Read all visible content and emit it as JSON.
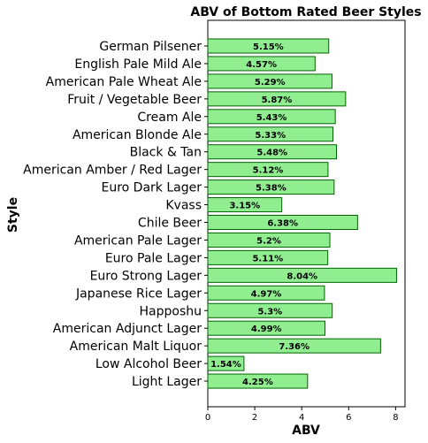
{
  "chart_data": {
    "type": "bar",
    "orientation": "horizontal",
    "title": "ABV of Bottom Rated Beer Styles",
    "xlabel": "ABV",
    "ylabel": "Style",
    "xlim": [
      0,
      8.4
    ],
    "xticks": [
      0,
      2,
      4,
      6,
      8
    ],
    "grid": false,
    "bar_color": "#90ee90",
    "bar_edge_color": "#006400",
    "categories": [
      "German Pilsener",
      "English Pale Mild Ale",
      "American Pale Wheat Ale",
      "Fruit / Vegetable Beer",
      "Cream Ale",
      "American Blonde Ale",
      "Black & Tan",
      "American Amber / Red Lager",
      "Euro Dark Lager",
      "Kvass",
      "Chile Beer",
      "American Pale Lager",
      "Euro Pale Lager",
      "Euro Strong Lager",
      "Japanese Rice Lager",
      "Happoshu",
      "American Adjunct Lager",
      "American Malt Liquor",
      "Low Alcohol Beer",
      "Light Lager"
    ],
    "values": [
      5.15,
      4.57,
      5.29,
      5.87,
      5.43,
      5.33,
      5.48,
      5.12,
      5.38,
      3.15,
      6.38,
      5.2,
      5.11,
      8.04,
      4.97,
      5.3,
      4.99,
      7.36,
      1.54,
      4.25
    ],
    "data_labels": [
      "5.15%",
      "4.57%",
      "5.29%",
      "5.87%",
      "5.43%",
      "5.33%",
      "5.48%",
      "5.12%",
      "5.38%",
      "3.15%",
      "6.38%",
      "5.2%",
      "5.11%",
      "8.04%",
      "4.97%",
      "5.3%",
      "4.99%",
      "7.36%",
      "1.54%",
      "4.25%"
    ]
  }
}
